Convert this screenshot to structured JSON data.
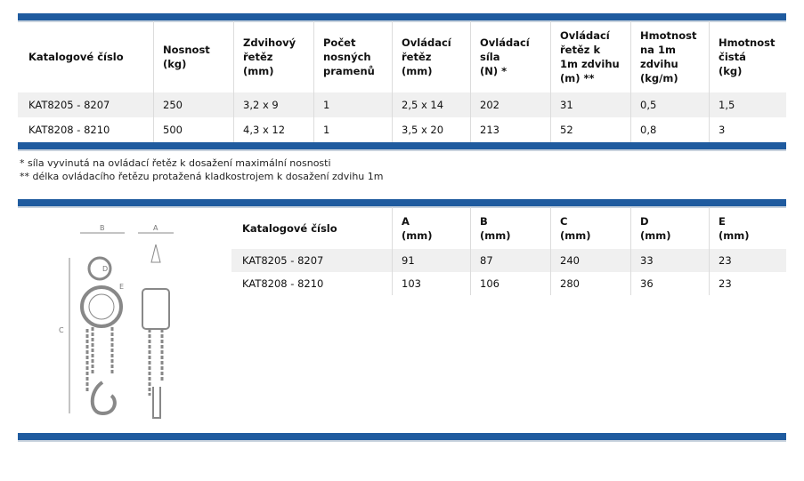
{
  "table1": {
    "header": [
      "Katalogové číslo",
      "Nosnost\n(kg)",
      "Zdvihový\nřetěz\n(mm)",
      "Počet\nnosných\npramenů",
      "Ovládací\nřetěz\n(mm)",
      "Ovládací\nsíla\n(N) *",
      "Ovládací\nřetěz k\n1m zdvihu\n(m) **",
      "Hmotnost\nna 1m\nzdvihu\n(kg/m)",
      "Hmotnost\nčistá\n(kg)"
    ],
    "rows": [
      [
        "KAT8205 - 8207",
        "250",
        "3,2 x 9",
        "1",
        "2,5 x 14",
        "202",
        "31",
        "0,5",
        "1,5"
      ],
      [
        "KAT8208 - 8210",
        "500",
        "4,3 x 12",
        "1",
        "3,5 x 20",
        "213",
        "52",
        "0,8",
        "3"
      ]
    ]
  },
  "footnotes": [
    "* síla vyvinutá na ovládací řetěz k dosažení maximální nosnosti",
    "** délka ovládacího řetězu protažená kladkostrojem k dosažení zdvihu 1m"
  ],
  "table2": {
    "header": [
      "Katalogové číslo",
      "A\n(mm)",
      "B\n(mm)",
      "C\n(mm)",
      "D\n(mm)",
      "E\n(mm)"
    ],
    "rows": [
      [
        "KAT8205 - 8207",
        "91",
        "87",
        "240",
        "33",
        "23"
      ],
      [
        "KAT8208 - 8210",
        "103",
        "106",
        "280",
        "36",
        "23"
      ]
    ]
  },
  "drawing": {
    "labels": [
      "B",
      "A",
      "C",
      "D",
      "E"
    ]
  }
}
